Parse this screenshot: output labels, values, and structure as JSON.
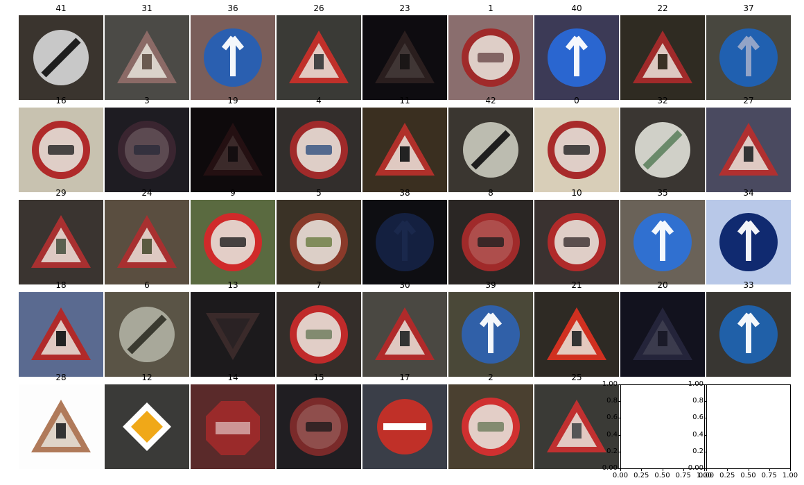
{
  "figure": {
    "tiles": [
      {
        "label": "41",
        "sign": "circle-white",
        "bg": "#3a342e",
        "fg": "#1e1e1e",
        "ring": "#c8c8c8"
      },
      {
        "label": "31",
        "sign": "triangle",
        "bg": "#4b4a46",
        "fg": "#6a5a50",
        "ring": "#8b6a66"
      },
      {
        "label": "36",
        "sign": "circle-blue",
        "bg": "#7a5e5a",
        "fg": "#ffffff",
        "ring": "#2a5fb0"
      },
      {
        "label": "26",
        "sign": "triangle",
        "bg": "#3a3a36",
        "fg": "#444",
        "ring": "#c0302a"
      },
      {
        "label": "23",
        "sign": "triangle",
        "bg": "#0e0c10",
        "fg": "#1a1616",
        "ring": "#2a1e1e"
      },
      {
        "label": "1",
        "sign": "circle-red",
        "bg": "#8a6e6e",
        "fg": "#6a4a4a",
        "ring": "#a02a2a"
      },
      {
        "label": "40",
        "sign": "circle-blue",
        "bg": "#3c3a56",
        "fg": "#ffffff",
        "ring": "#2a66d0"
      },
      {
        "label": "22",
        "sign": "triangle",
        "bg": "#2f2b22",
        "fg": "#3a3024",
        "ring": "#a02a2a"
      },
      {
        "label": "37",
        "sign": "circle-blue",
        "bg": "#48473f",
        "fg": "#9aa8c8",
        "ring": "#2060b0"
      },
      {
        "label": "16",
        "sign": "circle-red",
        "bg": "#c8c2b0",
        "fg": "#222222",
        "ring": "#b02a2a"
      },
      {
        "label": "3",
        "sign": "circle-red",
        "bg": "#1e1c22",
        "fg": "#2a2a3a",
        "ring": "#3a2530"
      },
      {
        "label": "19",
        "sign": "triangle",
        "bg": "#0e0a0c",
        "fg": "#140e10",
        "ring": "#241012"
      },
      {
        "label": "4",
        "sign": "circle-red",
        "bg": "#322e2c",
        "fg": "#305080",
        "ring": "#a02a2a"
      },
      {
        "label": "11",
        "sign": "triangle",
        "bg": "#3a2f20",
        "fg": "#222",
        "ring": "#b0302a"
      },
      {
        "label": "42",
        "sign": "circle-white",
        "bg": "#3a3630",
        "fg": "#1e1e1e",
        "ring": "#bcbcb0"
      },
      {
        "label": "0",
        "sign": "circle-red",
        "bg": "#d8ceb8",
        "fg": "#222222",
        "ring": "#a82a2a"
      },
      {
        "label": "32",
        "sign": "circle-white",
        "bg": "#3a3632",
        "fg": "#6a8a6a",
        "ring": "#d0d0c8"
      },
      {
        "label": "27",
        "sign": "triangle",
        "bg": "#4a4a60",
        "fg": "#333",
        "ring": "#b03030"
      },
      {
        "label": "29",
        "sign": "triangle",
        "bg": "#3a3430",
        "fg": "#5a6050",
        "ring": "#a83030"
      },
      {
        "label": "24",
        "sign": "triangle",
        "bg": "#5a4e40",
        "fg": "#5a5a40",
        "ring": "#a83030"
      },
      {
        "label": "9",
        "sign": "circle-red",
        "bg": "#5a6a40",
        "fg": "#1e1e1e",
        "ring": "#d02a2a"
      },
      {
        "label": "5",
        "sign": "circle-red",
        "bg": "#3a3226",
        "fg": "#6a7a40",
        "ring": "#8a3a2a"
      },
      {
        "label": "38",
        "sign": "circle-blue",
        "bg": "#0e0e12",
        "fg": "#2a3a6a",
        "ring": "#142040"
      },
      {
        "label": "8",
        "sign": "circle-red",
        "bg": "#2a2624",
        "fg": "#1e1e1e",
        "ring": "#a02a2a"
      },
      {
        "label": "10",
        "sign": "circle-red",
        "bg": "#3a3230",
        "fg": "#3a3030",
        "ring": "#b02a2a"
      },
      {
        "label": "35",
        "sign": "circle-blue",
        "bg": "#6a6258",
        "fg": "#ffffff",
        "ring": "#3070d0"
      },
      {
        "label": "34",
        "sign": "circle-blue",
        "bg": "#b8c8e8",
        "fg": "#ffffff",
        "ring": "#102a70"
      },
      {
        "label": "18",
        "sign": "triangle",
        "bg": "#5a6a90",
        "fg": "#222",
        "ring": "#b02a2a"
      },
      {
        "label": "6",
        "sign": "circle-white",
        "bg": "#5a5446",
        "fg": "#3a3a30",
        "ring": "#a8a89a"
      },
      {
        "label": "13",
        "sign": "triangle-down",
        "bg": "#1c1a1c",
        "fg": "#2a2224",
        "ring": "#3a2a2a"
      },
      {
        "label": "7",
        "sign": "circle-red",
        "bg": "#342e2a",
        "fg": "#6a7a5a",
        "ring": "#c02a2a"
      },
      {
        "label": "30",
        "sign": "triangle",
        "bg": "#4a4842",
        "fg": "#333",
        "ring": "#b02a2a"
      },
      {
        "label": "39",
        "sign": "circle-blue",
        "bg": "#4a4838",
        "fg": "#ffffff",
        "ring": "#3060a8"
      },
      {
        "label": "21",
        "sign": "triangle",
        "bg": "#2e2a24",
        "fg": "#333",
        "ring": "#d03020"
      },
      {
        "label": "20",
        "sign": "triangle",
        "bg": "#12121e",
        "fg": "#1a1a28",
        "ring": "#24243a"
      },
      {
        "label": "33",
        "sign": "circle-blue",
        "bg": "#383632",
        "fg": "#ffffff",
        "ring": "#2060a8"
      },
      {
        "label": "28",
        "sign": "triangle",
        "bg": "#fdfdfd",
        "fg": "#333",
        "ring": "#b07a5a"
      },
      {
        "label": "12",
        "sign": "diamond",
        "bg": "#3a3a38",
        "fg": "#f0a818",
        "ring": "#ffffff"
      },
      {
        "label": "14",
        "sign": "octagon",
        "bg": "#5a2a2a",
        "fg": "#ffffff",
        "ring": "#9a2a2a"
      },
      {
        "label": "15",
        "sign": "circle-red",
        "bg": "#201e22",
        "fg": "#1e1a1c",
        "ring": "#7a2a2a"
      },
      {
        "label": "17",
        "sign": "circle-noentry",
        "bg": "#3a3e48",
        "fg": "#ffffff",
        "ring": "#c03028"
      },
      {
        "label": "2",
        "sign": "circle-red",
        "bg": "#4a4030",
        "fg": "#6a7a5a",
        "ring": "#d03030"
      },
      {
        "label": "25",
        "sign": "triangle",
        "bg": "#3a3a36",
        "fg": "#555",
        "ring": "#c03030"
      }
    ],
    "empty_axes": [
      {
        "yticks": [
          "1.00",
          "0.8",
          "0.6",
          "0.4",
          "0.2",
          "0.00"
        ],
        "xticks": [
          "0.00",
          "0.25",
          "0.50",
          "0.75",
          "1.00"
        ]
      },
      {
        "yticks": [
          "1.00",
          "0.8",
          "0.6",
          "0.4",
          "0.2",
          "0.00"
        ],
        "xticks": [
          "0.00",
          "0.25",
          "0.50",
          "0.75",
          "1.00"
        ]
      }
    ]
  }
}
